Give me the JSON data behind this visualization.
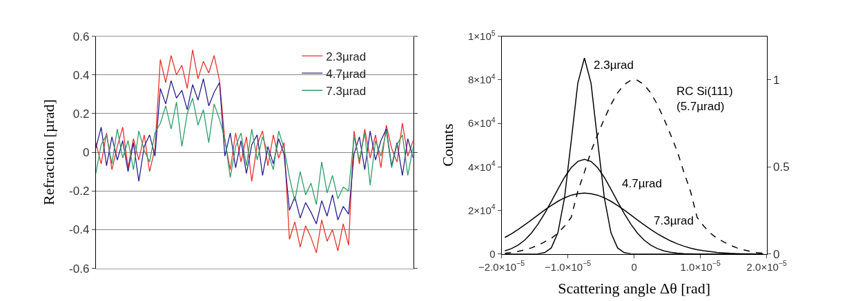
{
  "chart_data": [
    {
      "type": "line",
      "ylabel": "Refraction [µrad]",
      "ylim": [
        -0.6,
        0.6
      ],
      "yticks": [
        -0.6,
        -0.4,
        -0.2,
        0,
        0.2,
        0.4,
        0.6
      ],
      "grid": "y",
      "legend": "top right",
      "marker": "none",
      "line_style": "solid",
      "categories": [
        null,
        null,
        null,
        null,
        null,
        null,
        null,
        null,
        null,
        null,
        null,
        null,
        null,
        null,
        null,
        null,
        null,
        null,
        null,
        null,
        null,
        null,
        null,
        null,
        null,
        null,
        null,
        null,
        null,
        null,
        null,
        null,
        null,
        null,
        null,
        null,
        null,
        null,
        null,
        null,
        null,
        null,
        null,
        null,
        null,
        null,
        null,
        null,
        null,
        null,
        null,
        null,
        null,
        null,
        null,
        null,
        null,
        null,
        null,
        null
      ],
      "series": [
        {
          "name": "2.3µrad",
          "color": "#e8312a",
          "values": [
            0.05,
            -0.06,
            0.1,
            -0.09,
            0.03,
            0.13,
            -0.08,
            0.07,
            -0.04,
            0.09,
            -0.1,
            0.02,
            0.48,
            0.36,
            0.5,
            0.4,
            0.45,
            0.33,
            0.53,
            0.38,
            0.47,
            0.41,
            0.5,
            0.37,
            0.06,
            -0.09,
            0.1,
            -0.05,
            0.08,
            -0.15,
            0.04,
            0.11,
            -0.07,
            0.09,
            -0.03,
            0.05,
            -0.45,
            -0.36,
            -0.49,
            -0.38,
            -0.44,
            -0.52,
            -0.35,
            -0.46,
            -0.4,
            -0.51,
            -0.37,
            -0.48,
            0.11,
            -0.06,
            0.12,
            -0.03,
            0.09,
            -0.08,
            0.14,
            0.02,
            -0.05,
            0.15,
            -0.02,
            0.06
          ]
        },
        {
          "name": "4.7µrad",
          "color": "#2b1e8c",
          "values": [
            0.02,
            0.13,
            -0.07,
            0.08,
            -0.04,
            0.06,
            -0.1,
            0.05,
            -0.15,
            0.03,
            0.09,
            -0.02,
            0.33,
            0.25,
            0.37,
            0.28,
            0.32,
            0.22,
            0.35,
            0.27,
            0.38,
            0.24,
            0.31,
            0.36,
            -0.02,
            0.1,
            -0.08,
            0.06,
            -0.11,
            0.04,
            0.09,
            -0.12,
            0.03,
            -0.06,
            0.07,
            -0.01,
            -0.3,
            -0.23,
            -0.34,
            -0.26,
            -0.31,
            -0.37,
            -0.25,
            -0.33,
            -0.22,
            -0.35,
            -0.28,
            -0.32,
            -0.01,
            0.08,
            -0.09,
            0.11,
            -0.04,
            0.06,
            0.12,
            -0.07,
            0.05,
            -0.12,
            0.07,
            -0.03
          ]
        },
        {
          "name": "7.3µrad",
          "color": "#2e9e6a",
          "values": [
            -0.11,
            0.04,
            0.09,
            -0.06,
            0.12,
            -0.03,
            0.06,
            -0.09,
            0.11,
            0.01,
            -0.05,
            0.1,
            0.15,
            0.24,
            0.12,
            0.26,
            0.03,
            0.2,
            0.28,
            0.14,
            0.22,
            0.05,
            0.25,
            0.17,
            0.07,
            -0.13,
            0.03,
            0.1,
            -0.07,
            0.12,
            -0.04,
            0.08,
            0.0,
            -0.09,
            0.11,
            0.02,
            -0.13,
            -0.25,
            -0.1,
            -0.22,
            -0.16,
            -0.27,
            -0.05,
            -0.21,
            -0.12,
            -0.24,
            -0.18,
            -0.2,
            0.08,
            -0.04,
            0.1,
            -0.17,
            0.06,
            -0.02,
            0.11,
            -0.08,
            0.04,
            0.09,
            -0.12,
            0.03
          ]
        }
      ]
    },
    {
      "type": "line",
      "xlabel": "Scattering angle Δθ [rad]",
      "ylabel": "Counts",
      "grid": false,
      "legend": false,
      "marker": "none",
      "xlim": [
        -2e-05,
        2e-05
      ],
      "xticks": [
        {
          "value": -2e-05,
          "label": "−2.0×10$^{−5}$"
        },
        {
          "value": -1e-05,
          "label": "−1.0×10$^{−5}$"
        },
        0,
        {
          "value": 1e-05,
          "label": "1.0×10$^{−5}$"
        },
        {
          "value": 2e-05,
          "label": "2.0×10$^{−5}$"
        }
      ],
      "ylim": [
        0,
        100000
      ],
      "yticks": [
        0,
        {
          "value": 20000,
          "label": "2×10$^{4}$"
        },
        {
          "value": 40000,
          "label": "4×10$^{4}$"
        },
        {
          "value": 60000,
          "label": "6×10$^{4}$"
        },
        {
          "value": 80000,
          "label": "8×10$^{4}$"
        },
        {
          "value": 100000,
          "label": "1×10$^{5}$"
        }
      ],
      "y2lim": [
        0,
        1.25
      ],
      "y2ticks": [
        0,
        0.5,
        1
      ],
      "x": [
        -1.95e-05,
        -1.85e-05,
        -1.75e-05,
        -1.65e-05,
        -1.55e-05,
        -1.45e-05,
        -1.35e-05,
        -1.25e-05,
        -1.15e-05,
        -1.05e-05,
        -9.5e-06,
        -8.5e-06,
        -7.5e-06,
        -6.5e-06,
        -5.5e-06,
        -4.5e-06,
        -3.5e-06,
        -2.5e-06,
        -1.5e-06,
        -5e-07,
        5e-07,
        1.5e-06,
        2.5e-06,
        3.5e-06,
        4.5e-06,
        5.5e-06,
        6.5e-06,
        7.5e-06,
        8.5e-06,
        9.5e-06,
        1.05e-05,
        1.15e-05,
        1.25e-05,
        1.35e-05,
        1.45e-05,
        1.55e-05,
        1.65e-05,
        1.75e-05,
        1.85e-05,
        1.95e-05
      ],
      "series": [
        {
          "name": "2.3µrad",
          "color": "#000000",
          "line_style": "solid",
          "values": [
            0,
            0,
            0,
            0,
            0,
            100,
            600,
            2800,
            9800,
            25900,
            51700,
            78400,
            90000,
            78400,
            51700,
            25900,
            9800,
            2800,
            600,
            100,
            0,
            0,
            0,
            0,
            0,
            0,
            0,
            0,
            0,
            0,
            0,
            0,
            0,
            0,
            0,
            0,
            0,
            0,
            0,
            0
          ]
        },
        {
          "name": "4.7µrad",
          "color": "#000000",
          "line_style": "solid",
          "values": [
            1400,
            2500,
            4100,
            6400,
            9600,
            13700,
            18600,
            24100,
            29800,
            35200,
            39600,
            42500,
            43500,
            42500,
            39600,
            35200,
            29800,
            24100,
            18600,
            13700,
            9600,
            6400,
            4100,
            2500,
            1400,
            800,
            400,
            200,
            100,
            0,
            0,
            0,
            0,
            0,
            0,
            0,
            0,
            0,
            0,
            0
          ]
        },
        {
          "name": "7.3µrad",
          "color": "#000000",
          "line_style": "solid",
          "values": [
            7600,
            9300,
            11300,
            13400,
            15600,
            17900,
            20200,
            22300,
            24200,
            25800,
            27000,
            27700,
            28000,
            27700,
            27000,
            25800,
            24200,
            22300,
            20200,
            17900,
            15600,
            13400,
            11300,
            9300,
            7600,
            6000,
            4700,
            3600,
            2700,
            2000,
            1500,
            1100,
            700,
            500,
            300,
            200,
            100,
            100,
            0,
            0
          ]
        },
        {
          "name": "RC Si(111)\n(5.7µrad)",
          "color": "#000000",
          "line_style": "dashed",
          "axis": "y2",
          "values": [
            0.004,
            0.008,
            0.015,
            0.024,
            0.035,
            0.05,
            0.07,
            0.09,
            0.12,
            0.16,
            0.21,
            0.36,
            0.47,
            0.59,
            0.685,
            0.776,
            0.858,
            0.925,
            0.972,
            0.997,
            0.997,
            0.972,
            0.925,
            0.858,
            0.776,
            0.685,
            0.59,
            0.47,
            0.36,
            0.21,
            0.16,
            0.12,
            0.09,
            0.07,
            0.05,
            0.035,
            0.024,
            0.015,
            0.008,
            0.004
          ]
        }
      ]
    }
  ]
}
